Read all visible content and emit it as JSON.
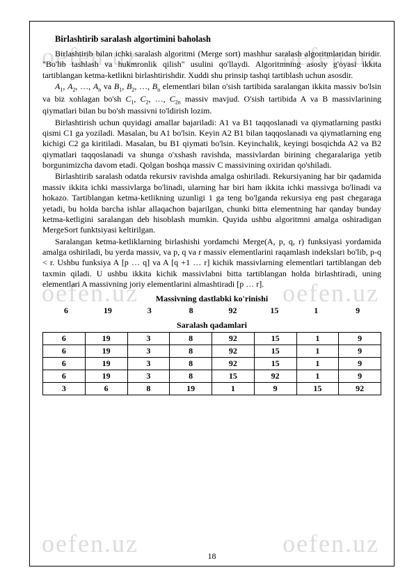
{
  "watermark_text": "oefen.uz",
  "title": "Birlashtirib saralash algortimini baholash",
  "paragraphs": {
    "p1": "Birlashtirib   bilan   ichki   saralash   algoritmi   (Merge   sort)   mashhur   saralash algoritmlaridan   biridir.   \"Bo'lib   tashlash   va   hukmronlik   qilish\"   usulini   qo'llaydi. Algoritmning asosiy g'oyasi ikkita tartiblangan ketma-ketlikni birlashtirishdir. Xuddi shu prinsip tashqi tartiblash uchun asosdir.",
    "p2_prefix": "A",
    "p2_mid1": ", …, ",
    "p2_mid2": " va ",
    "p2_mid3": ", …, ",
    "p2_body1": " elementlari bilan o'sish tartibida saralangan ikkita massiv bo'lsin va biz xohlagan bo'sh ",
    "p2_body2": ", …, ",
    "p2_body3": " massiv mavjud. O'sish tartibida A va B massivlarining qiymatlari bilan bu bo'sh massivni to'ldirish lozim.",
    "p3": "Birlashtirish   uchun   quyidagi   amallar   bajariladi:   A1   va   B1   taqqoslanadi   va qiymatlarning pastki qismi C1 ga yoziladi. Masalan, bu A1 bo'lsin. Keyin A2 B1 bilan taqqoslanadi  va  qiymatlarning  eng  kichigi  C2  ga  kiritiladi.  Masalan,  bu  B1  qiymati bo'lsin.  Keyinchalik,  keyingi  bosqichda  A2  va  B2  qiymatlari  taqqoslanadi  va  shunga o'xshash ravishda, massivlardan birining chegaralariga yetib borgunimizcha davom etadi. Qolgan boshqa massiv C massivining oxiridan qo'shiladi.",
    "p4": "Birlashtirib saralash odatda rekursiv ravishda amalga oshiriladi. Rekursiyaning har bir qadamida  massiv  ikkita  ichki  massivlarga  bo'linadi,  ularning  har  biri  ham  ikkita  ichki massivga   bo'linadi   va   hokazo.   Tartiblangan   ketma-ketlikning   uzunligi   1   ga   teng bo'lganda   rekursiya   eng   past   chegaraga   yetadi,   bu   holda   barcha   ishlar   allaqachon bajarilgan,  chunki  bitta  elementning  har  qanday  bunday  ketma-ketligini  saralangan  deb hisoblash  mumkin.  Quyida  ushbu  algoritmni  amalga  oshiradigan  MergeSort  funktsiyasi keltirilgan.",
    "p5": "Saralangan  ketma-ketliklarning  birlashishi  yordamchi  Merge(A,  p,  q,  r)  funksiyasi yordamida   amalga   oshiriladi,   bu   yerda   massiv,   va   p,   q   va   r   massiv   elementlarini raqamlash  indekslari  bo'lib,  p-q  <  r.  Ushbu  funksiya  A [p … q]  va  A [q +1 … r]  kichik massivlarning   elementlari   tartiblangan   deb   taxmin   qiladi.   U   ushbu   ikkita   kichik massivlabni  bitta  tartiblangan  holda  birlashtiradi,  uning  elementlari  A  massivning  joriy elementlarini almashtiradi [p … r]."
  },
  "headings": {
    "initial": "Massivning dastlabki ko'rinishi",
    "steps": "Saralash qadamlari"
  },
  "initial_row": [
    "6",
    "19",
    "3",
    "8",
    "92",
    "15",
    "1",
    "9"
  ],
  "table_rows": [
    [
      "6",
      "19",
      "3",
      "8",
      "92",
      "15",
      "1",
      "9"
    ],
    [
      "6",
      "19",
      "3",
      "8",
      "92",
      "15",
      "1",
      "9"
    ],
    [
      "6",
      "19",
      "3",
      "8",
      "92",
      "15",
      "1",
      "9"
    ],
    [
      "6",
      "19",
      "3",
      "8",
      "15",
      "92",
      "1",
      "9"
    ],
    [
      "3",
      "6",
      "8",
      "19",
      "1",
      "9",
      "15",
      "92"
    ]
  ],
  "page_number": "18"
}
